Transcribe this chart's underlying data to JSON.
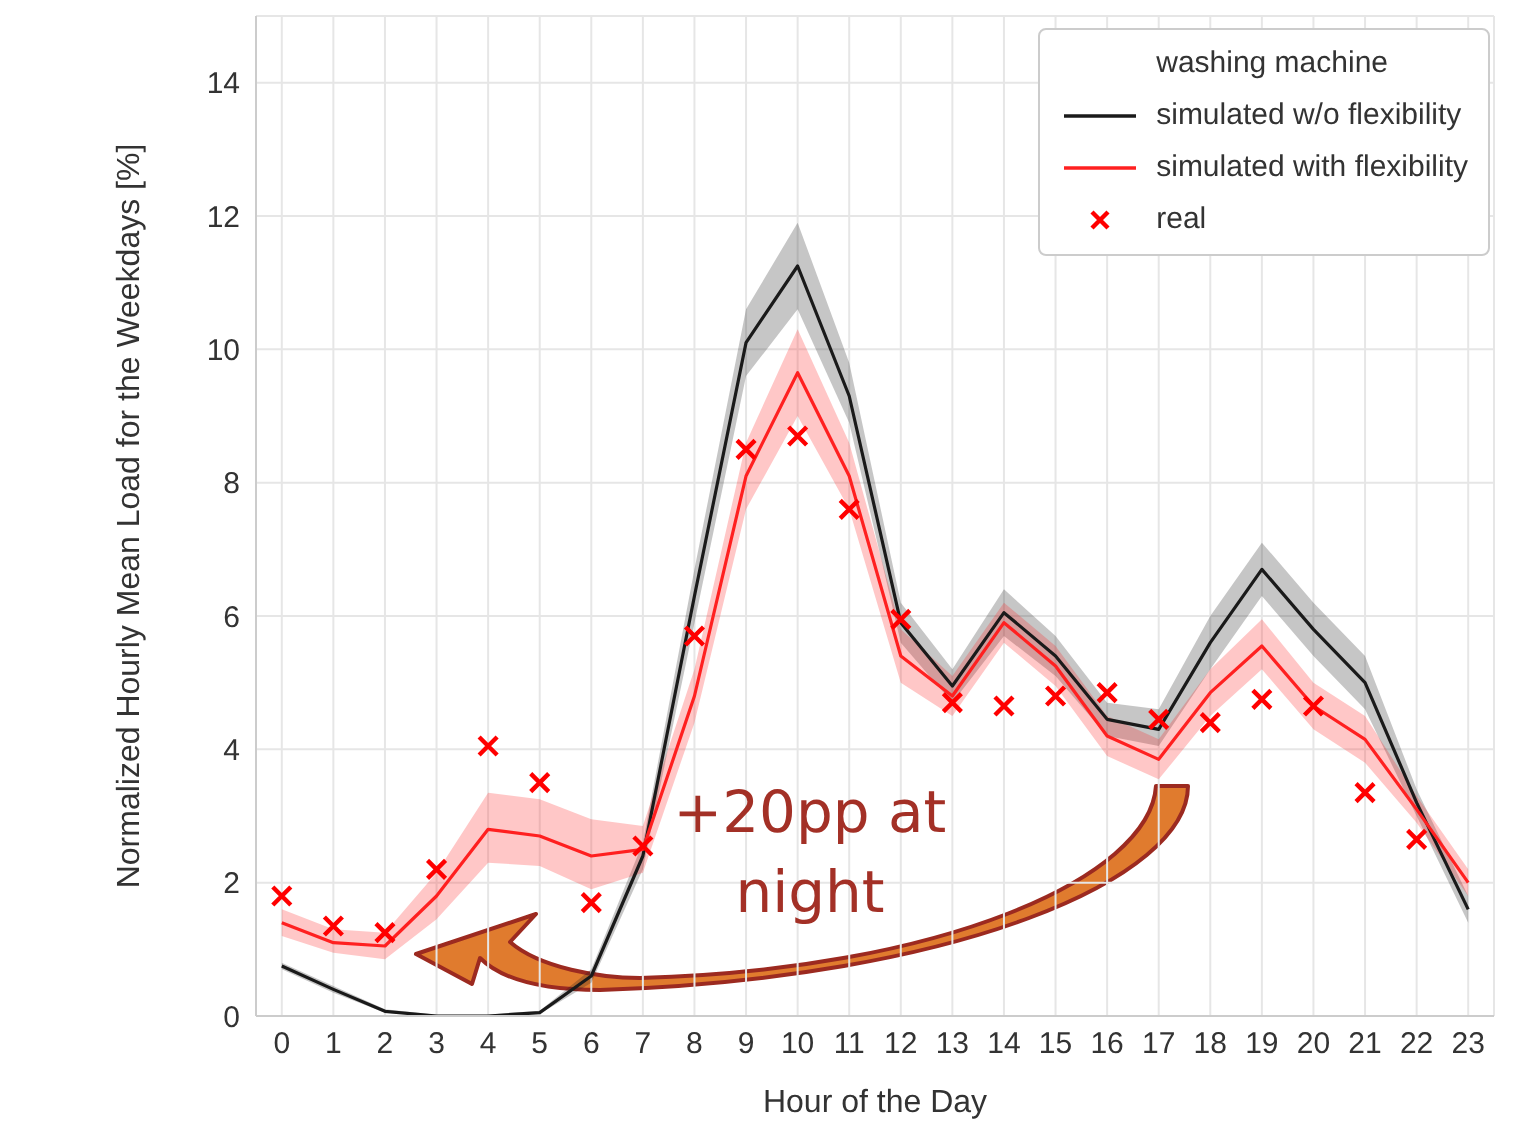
{
  "chart_data": {
    "type": "line",
    "xlabel": "Hour of the Day",
    "ylabel": "Normalized Hourly Mean Load for the Weekdays [%]",
    "legend_title": "washing machine",
    "x": [
      0,
      1,
      2,
      3,
      4,
      5,
      6,
      7,
      8,
      9,
      10,
      11,
      12,
      13,
      14,
      15,
      16,
      17,
      18,
      19,
      20,
      21,
      22,
      23
    ],
    "series": [
      {
        "name": "simulated w/o flexibility",
        "color": "#1a1a1a",
        "marker": "none",
        "values": [
          0.75,
          0.4,
          0.07,
          0,
          0,
          0.05,
          0.6,
          2.4,
          6.3,
          10.1,
          11.25,
          9.3,
          5.9,
          4.95,
          6.05,
          5.4,
          4.45,
          4.3,
          5.6,
          6.7,
          5.8,
          5.0,
          3.2,
          1.6
        ],
        "lower": [
          0.7,
          0.35,
          0.05,
          0,
          0,
          0.03,
          0.5,
          2.2,
          5.9,
          9.6,
          10.6,
          8.9,
          5.6,
          4.7,
          5.7,
          5.1,
          4.2,
          4.05,
          5.2,
          6.3,
          5.4,
          4.6,
          3.0,
          1.4
        ],
        "upper": [
          0.8,
          0.45,
          0.1,
          0.02,
          0.02,
          0.08,
          0.7,
          2.6,
          6.7,
          10.6,
          11.9,
          9.8,
          6.2,
          5.2,
          6.4,
          5.7,
          4.7,
          4.6,
          6.0,
          7.1,
          6.2,
          5.4,
          3.4,
          1.8
        ]
      },
      {
        "name": "simulated with flexibility",
        "color": "#ff2020",
        "marker": "none",
        "values": [
          1.4,
          1.1,
          1.05,
          1.8,
          2.8,
          2.7,
          2.4,
          2.5,
          4.8,
          8.1,
          9.65,
          8.1,
          5.4,
          4.8,
          5.9,
          5.25,
          4.2,
          3.85,
          4.85,
          5.55,
          4.65,
          4.15,
          3.1,
          2.0
        ],
        "lower": [
          1.2,
          0.95,
          0.85,
          1.45,
          2.3,
          2.25,
          1.9,
          2.15,
          4.4,
          7.6,
          9.0,
          7.6,
          5.0,
          4.5,
          5.6,
          4.95,
          3.9,
          3.55,
          4.5,
          5.2,
          4.3,
          3.8,
          2.9,
          1.8
        ],
        "upper": [
          1.6,
          1.3,
          1.25,
          2.15,
          3.35,
          3.25,
          2.95,
          2.85,
          5.2,
          8.6,
          10.3,
          8.6,
          5.8,
          5.1,
          6.2,
          5.55,
          4.5,
          4.15,
          5.2,
          5.95,
          5.0,
          4.5,
          3.3,
          2.2
        ]
      },
      {
        "name": "real",
        "type": "scatter",
        "color": "#ff0000",
        "marker": "cross",
        "values": [
          1.8,
          1.35,
          1.25,
          2.2,
          4.05,
          3.5,
          1.7,
          2.55,
          5.7,
          8.5,
          8.7,
          7.6,
          5.95,
          4.7,
          4.65,
          4.8,
          4.85,
          4.45,
          4.4,
          4.75,
          4.65,
          3.35,
          2.65,
          null
        ]
      }
    ],
    "xlim": [
      -0.5,
      23.5
    ],
    "xticks": [
      0,
      1,
      2,
      3,
      4,
      5,
      6,
      7,
      8,
      9,
      10,
      11,
      12,
      13,
      14,
      15,
      16,
      17,
      18,
      19,
      20,
      21,
      22,
      23
    ],
    "ylim": [
      0,
      15
    ],
    "yticks": [
      0,
      2,
      4,
      6,
      8,
      10,
      12,
      14
    ],
    "grid": true,
    "legend": "top right",
    "annotations": [
      "+20pp at night"
    ]
  }
}
